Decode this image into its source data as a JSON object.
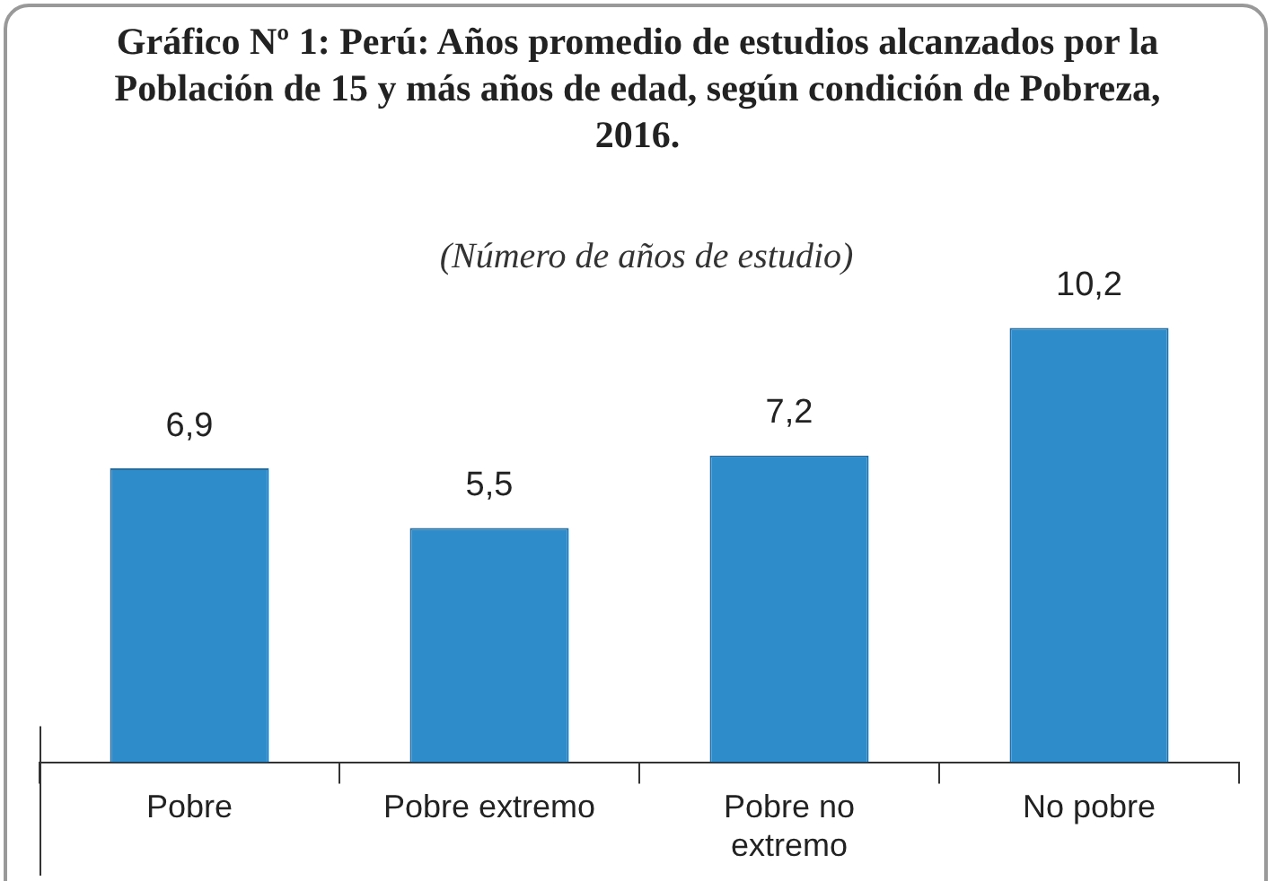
{
  "chart_data": {
    "type": "bar",
    "title": "Gráfico Nº 1: Perú: Años promedio de estudios alcanzados por la Población de 15 y más años de edad, según condición de Pobreza, 2016.",
    "subtitle": "(Número de años de estudio)",
    "categories": [
      "Pobre",
      "Pobre extremo",
      "Pobre no extremo",
      "No pobre"
    ],
    "values": [
      6.9,
      5.5,
      7.2,
      10.2
    ],
    "value_labels": [
      "6,9",
      "5,5",
      "7,2",
      "10,2"
    ],
    "color": "#2f8ccb",
    "grid": false,
    "legend": false
  }
}
